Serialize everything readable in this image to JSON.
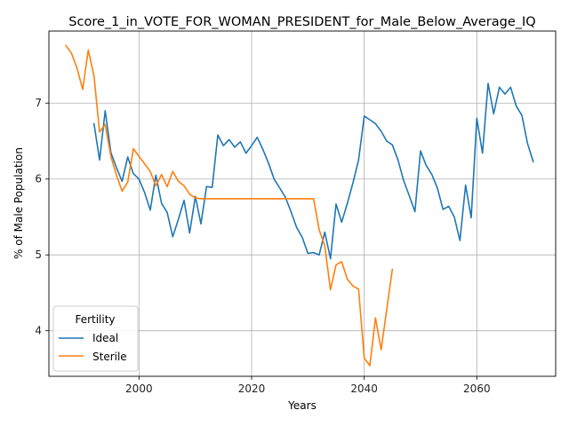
{
  "chart_data": {
    "type": "line",
    "title": "Score_1_in_VOTE_FOR_WOMAN_PRESIDENT_for_Male_Below_Average_IQ",
    "xlabel": "Years",
    "ylabel": "% of Male Population",
    "xlim": [
      1984,
      2074
    ],
    "ylim": [
      3.4,
      7.95
    ],
    "xticks": [
      2000,
      2020,
      2040,
      2060
    ],
    "yticks": [
      4,
      5,
      6,
      7
    ],
    "grid": true,
    "legend": {
      "title": "Fertility",
      "placement": "lower-left"
    },
    "series": [
      {
        "name": "Ideal",
        "color": "#1f77b4",
        "points": [
          [
            1992,
            6.73
          ],
          [
            1993,
            6.25
          ],
          [
            1994,
            6.9
          ],
          [
            1995,
            6.35
          ],
          [
            1996,
            6.15
          ],
          [
            1997,
            5.97
          ],
          [
            1998,
            6.29
          ],
          [
            1999,
            6.07
          ],
          [
            2000,
            6.0
          ],
          [
            2001,
            5.82
          ],
          [
            2002,
            5.59
          ],
          [
            2003,
            6.05
          ],
          [
            2004,
            5.68
          ],
          [
            2005,
            5.56
          ],
          [
            2006,
            5.24
          ],
          [
            2007,
            5.47
          ],
          [
            2008,
            5.72
          ],
          [
            2009,
            5.29
          ],
          [
            2010,
            5.77
          ],
          [
            2011,
            5.41
          ],
          [
            2012,
            5.9
          ],
          [
            2013,
            5.89
          ],
          [
            2014,
            6.58
          ],
          [
            2015,
            6.44
          ],
          [
            2016,
            6.52
          ],
          [
            2017,
            6.42
          ],
          [
            2018,
            6.49
          ],
          [
            2019,
            6.34
          ],
          [
            2020,
            6.44
          ],
          [
            2021,
            6.55
          ],
          [
            2022,
            6.39
          ],
          [
            2023,
            6.21
          ],
          [
            2024,
            6.0
          ],
          [
            2025,
            5.88
          ],
          [
            2026,
            5.76
          ],
          [
            2027,
            5.57
          ],
          [
            2028,
            5.36
          ],
          [
            2029,
            5.23
          ],
          [
            2030,
            5.02
          ],
          [
            2031,
            5.03
          ],
          [
            2032,
            5.0
          ],
          [
            2033,
            5.3
          ],
          [
            2034,
            4.95
          ],
          [
            2035,
            5.67
          ],
          [
            2036,
            5.43
          ],
          [
            2037,
            5.68
          ],
          [
            2038,
            5.95
          ],
          [
            2039,
            6.25
          ],
          [
            2040,
            6.83
          ],
          [
            2041,
            6.78
          ],
          [
            2042,
            6.73
          ],
          [
            2043,
            6.63
          ],
          [
            2044,
            6.5
          ],
          [
            2045,
            6.45
          ],
          [
            2046,
            6.25
          ],
          [
            2047,
            5.98
          ],
          [
            2048,
            5.78
          ],
          [
            2049,
            5.57
          ],
          [
            2050,
            6.37
          ],
          [
            2051,
            6.18
          ],
          [
            2052,
            6.06
          ],
          [
            2053,
            5.88
          ],
          [
            2054,
            5.6
          ],
          [
            2055,
            5.64
          ],
          [
            2056,
            5.5
          ],
          [
            2057,
            5.19
          ],
          [
            2058,
            5.92
          ],
          [
            2059,
            5.49
          ],
          [
            2060,
            6.8
          ],
          [
            2061,
            6.34
          ],
          [
            2062,
            7.26
          ],
          [
            2063,
            6.86
          ],
          [
            2064,
            7.21
          ],
          [
            2065,
            7.12
          ],
          [
            2066,
            7.21
          ],
          [
            2067,
            6.96
          ],
          [
            2068,
            6.84
          ],
          [
            2069,
            6.47
          ],
          [
            2070,
            6.23
          ]
        ]
      },
      {
        "name": "Sterile",
        "color": "#ff7f0e",
        "points": [
          [
            1987,
            7.76
          ],
          [
            1988,
            7.66
          ],
          [
            1989,
            7.46
          ],
          [
            1990,
            7.18
          ],
          [
            1991,
            7.7
          ],
          [
            1992,
            7.36
          ],
          [
            1993,
            6.62
          ],
          [
            1994,
            6.72
          ],
          [
            1995,
            6.3
          ],
          [
            1996,
            6.05
          ],
          [
            1997,
            5.84
          ],
          [
            1998,
            5.96
          ],
          [
            1999,
            6.4
          ],
          [
            2000,
            6.3
          ],
          [
            2001,
            6.2
          ],
          [
            2002,
            6.1
          ],
          [
            2003,
            5.91
          ],
          [
            2004,
            6.06
          ],
          [
            2005,
            5.9
          ],
          [
            2006,
            6.1
          ],
          [
            2007,
            5.97
          ],
          [
            2008,
            5.91
          ],
          [
            2009,
            5.8
          ],
          [
            2010,
            5.75
          ],
          [
            2011,
            5.74
          ],
          [
            2012,
            5.74
          ],
          [
            2015,
            5.74
          ],
          [
            2020,
            5.74
          ],
          [
            2025,
            5.74
          ],
          [
            2031,
            5.74
          ],
          [
            2032,
            5.33
          ],
          [
            2033,
            5.12
          ],
          [
            2034,
            4.54
          ],
          [
            2035,
            4.87
          ],
          [
            2036,
            4.91
          ],
          [
            2037,
            4.68
          ],
          [
            2038,
            4.59
          ],
          [
            2039,
            4.55
          ],
          [
            2040,
            3.64
          ],
          [
            2041,
            3.54
          ],
          [
            2042,
            4.17
          ],
          [
            2043,
            3.75
          ],
          [
            2044,
            4.28
          ],
          [
            2045,
            4.81
          ]
        ]
      }
    ]
  }
}
